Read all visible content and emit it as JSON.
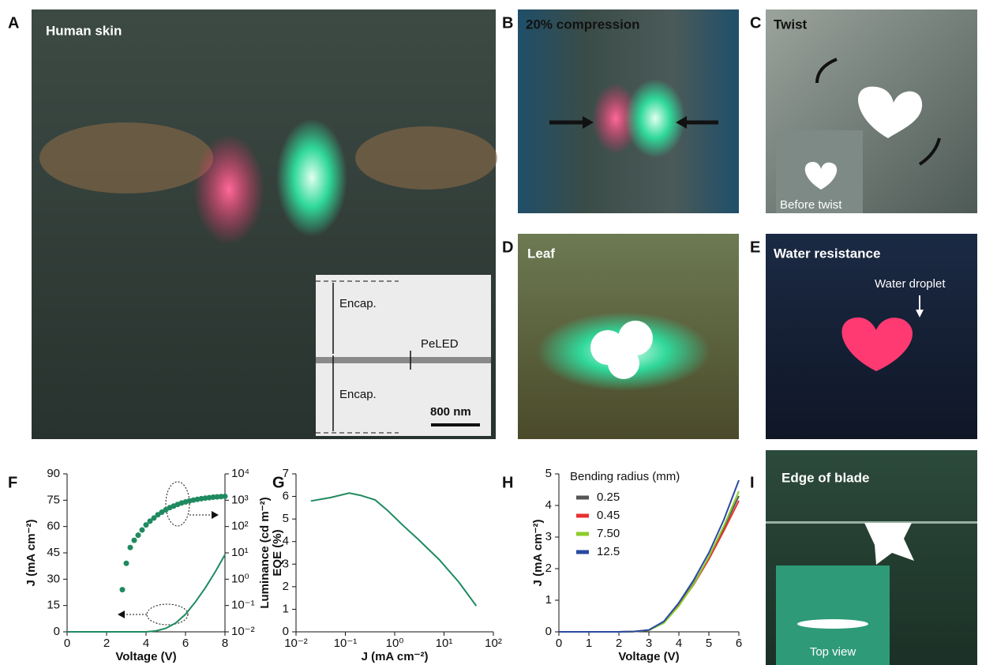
{
  "panels": [
    {
      "letter": "A",
      "label": "Human skin",
      "annotations": [
        "Encap.",
        "PeLED",
        "Encap.",
        "800 nm"
      ]
    },
    {
      "letter": "B",
      "label": "20% compression"
    },
    {
      "letter": "C",
      "label": "Twist",
      "annotations": [
        "Before twist"
      ]
    },
    {
      "letter": "D",
      "label": "Leaf"
    },
    {
      "letter": "E",
      "label": "Water resistance",
      "annotations": [
        "Water droplet"
      ]
    },
    {
      "letter": "I",
      "label": "Edge of blade",
      "annotations": [
        "Top view"
      ]
    }
  ],
  "chart_data": [
    {
      "label": "F",
      "type": "line",
      "xlabel": "Voltage (V)",
      "ylabel": "J (mA cm⁻²)",
      "y2label": "Luminance (cd m⁻²)",
      "xlim": [
        0,
        8
      ],
      "xticks": [
        0,
        2,
        4,
        6,
        8
      ],
      "ylim": [
        0,
        90
      ],
      "yticks": [
        0,
        15,
        30,
        45,
        60,
        75,
        90
      ],
      "y2lim": [
        0.01,
        10000
      ],
      "y2log": true,
      "y2ticks": [
        {
          "value": 0.01,
          "label": "10⁻²"
        },
        {
          "value": 0.1,
          "label": "10⁻¹"
        },
        {
          "value": 1,
          "label": "10⁰"
        },
        {
          "value": 10,
          "label": "10¹"
        },
        {
          "value": 100,
          "label": "10²"
        },
        {
          "value": 1000,
          "label": "10³"
        },
        {
          "value": 10000,
          "label": "10⁴"
        }
      ],
      "series": [
        {
          "color": "#1f8a5f",
          "x": [
            0,
            1,
            2,
            3,
            4,
            4.5,
            5,
            5.5,
            6,
            6.5,
            7,
            7.5,
            8
          ],
          "values": [
            0,
            0,
            0,
            0,
            0,
            0.5,
            2,
            5,
            10,
            17,
            25,
            34,
            44
          ]
        },
        {
          "color": "#1f8a5f",
          "axis": "y2",
          "marker": "dot",
          "x": [
            2.8,
            3.0,
            3.2,
            3.4,
            3.6,
            3.8,
            4.0,
            4.2,
            4.4,
            4.6,
            4.8,
            5.0,
            5.2,
            5.4,
            5.6,
            5.8,
            6.0,
            6.2,
            6.4,
            6.6,
            6.8,
            7.0,
            7.2,
            7.4,
            7.6,
            7.8,
            8.0
          ],
          "values": [
            0.4,
            4,
            16,
            30,
            47,
            74,
            115,
            160,
            210,
            280,
            350,
            430,
            520,
            600,
            690,
            780,
            860,
            940,
            1010,
            1080,
            1140,
            1200,
            1250,
            1300,
            1340,
            1370,
            1400
          ]
        }
      ]
    },
    {
      "label": "G",
      "type": "line",
      "xlabel": "J (mA cm⁻²)",
      "ylabel": "EQE (%)",
      "xlim": [
        0.01,
        100
      ],
      "xlog": true,
      "xticks": [
        {
          "value": 0.01,
          "label": "10⁻²"
        },
        {
          "value": 0.1,
          "label": "10⁻¹"
        },
        {
          "value": 1,
          "label": "10⁰"
        },
        {
          "value": 10,
          "label": "10¹"
        },
        {
          "value": 100,
          "label": "10²"
        }
      ],
      "ylim": [
        0,
        7
      ],
      "yticks": [
        0,
        1,
        2,
        3,
        4,
        5,
        6,
        7
      ],
      "series": [
        {
          "color": "#1f8a5f",
          "x": [
            0.02,
            0.05,
            0.12,
            0.2,
            0.4,
            0.7,
            1.5,
            3,
            8,
            20,
            45
          ],
          "values": [
            5.8,
            5.95,
            6.15,
            6.05,
            5.85,
            5.4,
            4.7,
            4.1,
            3.2,
            2.2,
            1.15
          ]
        }
      ]
    },
    {
      "label": "H",
      "type": "line",
      "xlabel": "Voltage (V)",
      "ylabel": "J (mA cm⁻²)",
      "legend_title": "Bending radius (mm)",
      "legend": "upper left",
      "xlim": [
        0,
        6
      ],
      "xticks": [
        0,
        1,
        2,
        3,
        4,
        5,
        6
      ],
      "ylim": [
        0,
        5
      ],
      "yticks": [
        0,
        1,
        2,
        3,
        4,
        5
      ],
      "x": [
        0,
        1,
        2,
        2.5,
        3,
        3.5,
        4,
        4.5,
        5,
        5.5,
        6
      ],
      "series": [
        {
          "name": "0.25",
          "color": "#555555",
          "values": [
            0,
            0,
            0,
            0.01,
            0.05,
            0.3,
            0.85,
            1.55,
            2.35,
            3.3,
            4.3
          ]
        },
        {
          "name": "0.45",
          "color": "#e83030",
          "values": [
            0,
            0,
            0,
            0.01,
            0.05,
            0.3,
            0.85,
            1.5,
            2.3,
            3.2,
            4.15
          ]
        },
        {
          "name": "7.50",
          "color": "#8ccc2a",
          "values": [
            0,
            0,
            0,
            0.01,
            0.05,
            0.28,
            0.82,
            1.52,
            2.38,
            3.35,
            4.45
          ]
        },
        {
          "name": "12.5",
          "color": "#2a4aa0",
          "values": [
            0,
            0,
            0,
            0.01,
            0.06,
            0.33,
            0.92,
            1.65,
            2.5,
            3.55,
            4.8
          ]
        }
      ]
    }
  ]
}
